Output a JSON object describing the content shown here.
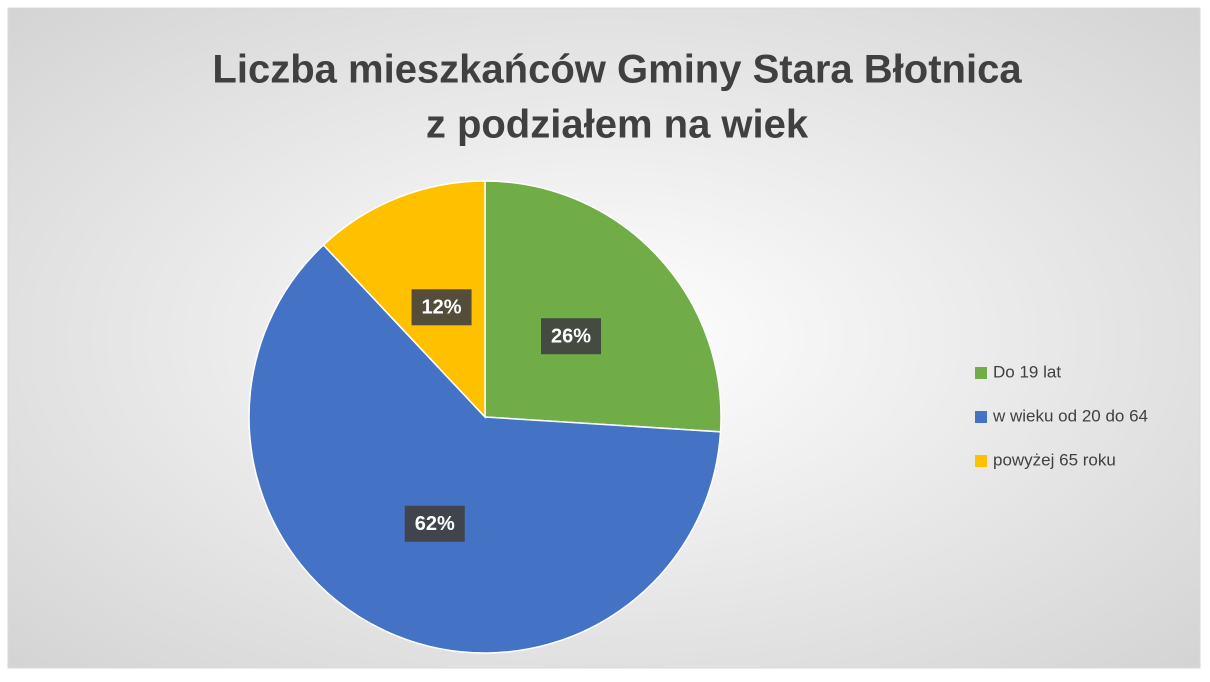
{
  "chart_data": {
    "type": "pie",
    "title": [
      "Liczba mieszkańców Gminy Stara Błotnica",
      "z podziałem na wiek"
    ],
    "categories": [
      "Do 19 lat",
      "w wieku od 20 do 64",
      "powyżej 65 roku"
    ],
    "values": [
      26,
      62,
      12
    ],
    "value_labels": [
      "26%",
      "62%",
      "12%"
    ],
    "colors": [
      "#70ad47",
      "#4472c4",
      "#ffc000"
    ],
    "legend": "right"
  }
}
